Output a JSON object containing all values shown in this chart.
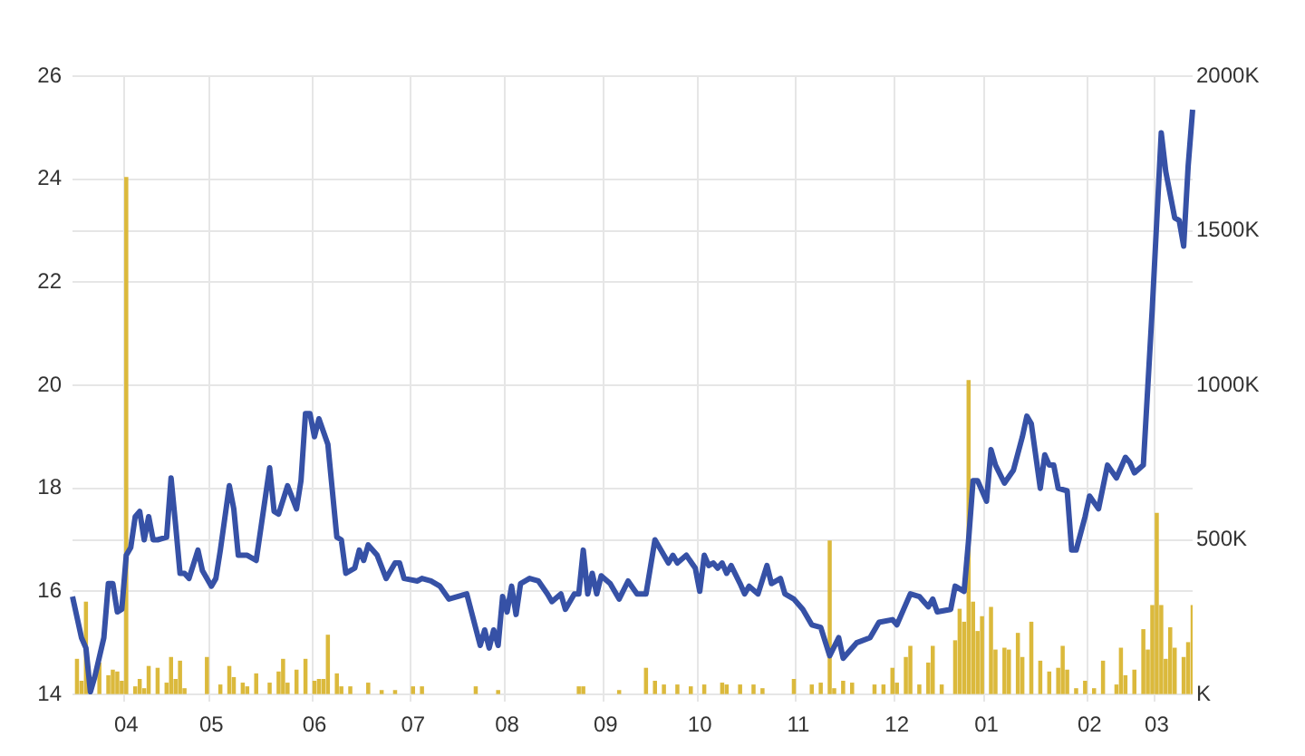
{
  "chart_data": {
    "type": "line",
    "categories": [
      null,
      null,
      null,
      null,
      null,
      null,
      null,
      null,
      null,
      null,
      null,
      null,
      "04",
      null,
      null,
      null,
      null,
      null,
      null,
      null,
      null,
      null,
      null,
      null,
      null,
      null,
      null,
      null,
      null,
      null,
      null,
      "05",
      null,
      null,
      null,
      null,
      null,
      null,
      null,
      null,
      null,
      null,
      null,
      null,
      null,
      null,
      null,
      null,
      null,
      null,
      null,
      null,
      null,
      null,
      "06",
      null,
      null,
      null,
      null,
      null,
      null,
      null,
      null,
      null,
      null,
      null,
      null,
      null,
      null,
      null,
      null,
      null,
      null,
      null,
      null,
      null,
      "07",
      null,
      null,
      null,
      null,
      null,
      null,
      null,
      null,
      null,
      null,
      null,
      null,
      null,
      null,
      null,
      null,
      null,
      null,
      null,
      null,
      "08",
      null,
      null,
      null,
      null,
      null,
      null,
      null,
      null,
      null,
      null,
      null,
      null,
      null,
      null,
      null,
      null,
      null,
      null,
      null,
      null,
      null,
      "09",
      null,
      null,
      null,
      null,
      null,
      null,
      null,
      null,
      null,
      null,
      null,
      null,
      null,
      null,
      null,
      null,
      null,
      null,
      null,
      null,
      "10",
      null,
      null,
      null,
      null,
      null,
      null,
      null,
      null,
      null,
      null,
      null,
      null,
      null,
      null,
      null,
      null,
      null,
      null,
      null,
      null,
      null,
      "11",
      null,
      null,
      null,
      null,
      null,
      null,
      null,
      null,
      null,
      null,
      null,
      null,
      null,
      null,
      null,
      null,
      null,
      null,
      null,
      null,
      null,
      "12",
      null,
      null,
      null,
      null,
      null,
      null,
      null,
      null,
      null,
      null,
      null,
      null,
      null,
      null,
      null,
      null,
      null,
      null,
      null,
      "01",
      null,
      null,
      null,
      null,
      null,
      null,
      null,
      null,
      null,
      null,
      null,
      null,
      null,
      null,
      null,
      null,
      null,
      null,
      null,
      null,
      null,
      null,
      "02",
      null,
      null,
      null,
      null,
      null,
      null,
      null,
      null,
      null,
      null,
      null,
      null,
      null,
      null,
      "03",
      null,
      null,
      null,
      null,
      null,
      null,
      null,
      null
    ],
    "ylim": [
      14,
      26
    ],
    "yticks": [
      14,
      16,
      18,
      20,
      22,
      24,
      26
    ],
    "y2lim": [
      0,
      2000
    ],
    "y2ticks": [
      {
        "value": 0,
        "label": "K"
      },
      {
        "value": 500,
        "label": "500K"
      },
      {
        "value": 1000,
        "label": "1000K"
      },
      {
        "value": 1500,
        "label": "1500K"
      },
      {
        "value": 2000,
        "label": "2000K"
      }
    ],
    "grid": true,
    "legend": false,
    "marker": "none",
    "line_style": "solid",
    "series": [
      {
        "type": "bar",
        "axis": "y2",
        "color": "#dbb93c",
        "values": [
          null,
          113,
          42,
          298,
          null,
          null,
          101,
          null,
          60,
          78,
          72,
          42,
          1672,
          null,
          24,
          48,
          18,
          90,
          null,
          84,
          null,
          36,
          119,
          48,
          107,
          18,
          null,
          null,
          null,
          null,
          119,
          null,
          null,
          30,
          null,
          90,
          54,
          null,
          36,
          24,
          null,
          66,
          null,
          null,
          36,
          null,
          72,
          113,
          36,
          null,
          78,
          null,
          113,
          null,
          42,
          48,
          48,
          191,
          null,
          66,
          24,
          null,
          24,
          null,
          null,
          null,
          36,
          null,
          null,
          12,
          null,
          null,
          12,
          null,
          null,
          null,
          24,
          null,
          24,
          null,
          null,
          null,
          null,
          null,
          null,
          null,
          null,
          null,
          null,
          null,
          24,
          null,
          null,
          null,
          null,
          12,
          null,
          null,
          null,
          null,
          null,
          null,
          null,
          null,
          null,
          null,
          null,
          null,
          null,
          null,
          null,
          null,
          null,
          24,
          24,
          null,
          null,
          null,
          null,
          null,
          null,
          null,
          12,
          null,
          null,
          null,
          null,
          null,
          84,
          null,
          42,
          null,
          30,
          null,
          null,
          30,
          null,
          null,
          24,
          null,
          null,
          30,
          null,
          null,
          null,
          36,
          30,
          null,
          null,
          30,
          null,
          null,
          30,
          null,
          18,
          null,
          null,
          null,
          null,
          null,
          null,
          48,
          null,
          null,
          null,
          30,
          null,
          36,
          null,
          496,
          18,
          null,
          42,
          null,
          36,
          null,
          null,
          null,
          null,
          30,
          null,
          30,
          null,
          84,
          36,
          null,
          119,
          155,
          null,
          30,
          null,
          101,
          155,
          null,
          30,
          null,
          null,
          173,
          275,
          233,
          1015,
          298,
          203,
          251,
          null,
          281,
          143,
          null,
          149,
          143,
          null,
          197,
          119,
          null,
          233,
          null,
          107,
          null,
          72,
          null,
          84,
          155,
          78,
          null,
          18,
          null,
          42,
          null,
          18,
          null,
          107,
          null,
          null,
          30,
          149,
          60,
          null,
          78,
          null,
          209,
          143,
          287,
          585,
          287,
          113,
          215,
          149,
          null,
          119,
          167,
          287
        ]
      },
      {
        "axis": "y",
        "color": "#3651a6",
        "values": [
          15.9,
          null,
          15.1,
          14.9,
          14.05,
          14.35,
          null,
          15.1,
          16.15,
          16.15,
          15.6,
          15.65,
          16.7,
          16.85,
          17.45,
          17.55,
          17.0,
          17.45,
          17.0,
          17.0,
          null,
          17.05,
          18.2,
          17.3,
          16.35,
          16.35,
          16.25,
          null,
          16.8,
          16.4,
          null,
          16.1,
          16.25,
          16.8,
          null,
          18.05,
          17.6,
          16.7,
          null,
          16.7,
          null,
          16.6,
          17.2,
          null,
          18.4,
          17.55,
          17.5,
          null,
          18.05,
          null,
          17.6,
          18.15,
          19.45,
          19.45,
          19.0,
          19.35,
          null,
          18.85,
          null,
          17.05,
          17.0,
          16.35,
          null,
          16.45,
          16.8,
          16.6,
          16.9,
          null,
          16.7,
          null,
          16.25,
          null,
          16.55,
          16.55,
          16.25,
          null,
          null,
          16.2,
          16.25,
          null,
          16.2,
          null,
          16.1,
          null,
          15.85,
          null,
          null,
          null,
          15.95,
          null,
          null,
          14.95,
          15.25,
          14.9,
          15.25,
          14.95,
          15.9,
          15.6,
          16.1,
          15.55,
          16.15,
          null,
          16.25,
          null,
          16.2,
          null,
          15.95,
          15.8,
          null,
          15.95,
          15.65,
          null,
          15.95,
          15.95,
          16.8,
          15.95,
          16.35,
          15.95,
          16.3,
          null,
          16.15,
          null,
          15.85,
          null,
          16.2,
          null,
          15.95,
          null,
          15.95,
          null,
          17.0,
          16.85,
          null,
          16.55,
          16.7,
          16.55,
          null,
          16.7,
          null,
          16.45,
          16.0,
          16.7,
          16.5,
          16.55,
          16.45,
          16.55,
          16.35,
          16.5,
          null,
          16.15,
          15.95,
          16.1,
          null,
          15.95,
          null,
          16.5,
          16.15,
          null,
          16.25,
          15.95,
          null,
          15.85,
          null,
          15.65,
          null,
          15.35,
          null,
          15.3,
          null,
          14.75,
          null,
          15.1,
          14.7,
          14.8,
          null,
          15.0,
          null,
          null,
          15.1,
          null,
          15.4,
          null,
          null,
          15.45,
          15.35,
          15.55,
          null,
          15.95,
          null,
          15.9,
          null,
          15.7,
          15.85,
          15.6,
          null,
          null,
          15.65,
          16.1,
          null,
          16.0,
          17.0,
          18.15,
          18.15,
          null,
          17.75,
          18.75,
          18.45,
          null,
          18.1,
          null,
          18.35,
          null,
          19.0,
          19.4,
          19.25,
          null,
          18.0,
          18.65,
          18.45,
          18.45,
          18.0,
          null,
          17.95,
          16.8,
          16.8,
          null,
          17.45,
          17.85,
          null,
          17.6,
          null,
          18.45,
          null,
          18.2,
          null,
          18.6,
          18.5,
          18.3,
          null,
          18.45,
          null,
          21.5,
          null,
          24.9,
          24.15,
          null,
          23.25,
          23.2,
          22.7,
          24.25,
          25.35
        ]
      }
    ]
  }
}
